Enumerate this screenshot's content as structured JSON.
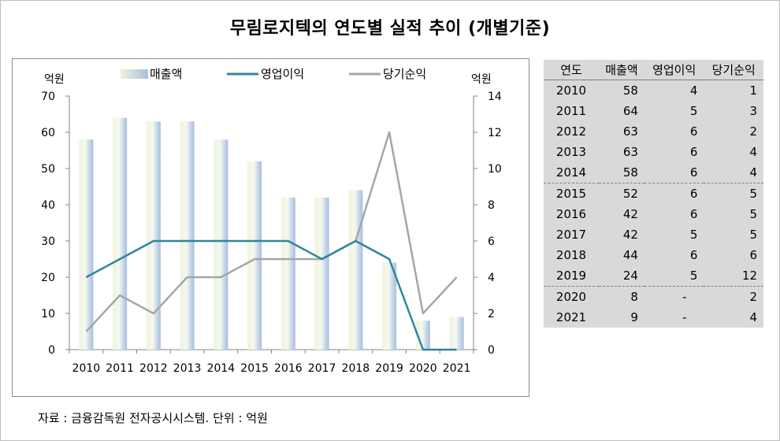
{
  "title": "무림로지텍의 연도별 실적 추이 (개별기준)",
  "source": "자료 : 금융감독원 전자공시시스템. 단위 : 억원",
  "chart_data": {
    "type": "bar",
    "categories": [
      "2010",
      "2011",
      "2012",
      "2013",
      "2014",
      "2015",
      "2016",
      "2017",
      "2018",
      "2019",
      "2020",
      "2021"
    ],
    "series": [
      {
        "name": "매출액",
        "type": "bar",
        "axis": "left",
        "values": [
          58,
          64,
          63,
          63,
          58,
          52,
          42,
          42,
          44,
          24,
          8,
          9
        ]
      },
      {
        "name": "영업이익",
        "type": "line",
        "axis": "right",
        "values": [
          4,
          5,
          6,
          6,
          6,
          6,
          6,
          5,
          6,
          5,
          0,
          0
        ],
        "color": "#31859c"
      },
      {
        "name": "당기순익",
        "type": "line",
        "axis": "right",
        "values": [
          1,
          3,
          2,
          4,
          4,
          5,
          5,
          5,
          6,
          12,
          2,
          4
        ],
        "color": "#a6a6a6"
      }
    ],
    "y_left": {
      "label": "억원",
      "ylim": [
        0,
        70
      ],
      "ticks": [
        "0",
        "10",
        "20",
        "30",
        "40",
        "50",
        "60",
        "70"
      ]
    },
    "y_right": {
      "label": "억원",
      "ylim": [
        0,
        14
      ],
      "ticks": [
        "0",
        "2",
        "4",
        "6",
        "8",
        "10",
        "12",
        "14"
      ]
    },
    "grid": false,
    "legend": "top",
    "colors": {
      "bar_light": "#eef4dc",
      "bar_mid": "#c6d6ea",
      "bar_edge": "#a9bfdc"
    }
  },
  "table": {
    "headers": [
      "연도",
      "매출액",
      "영업이익",
      "당기순익"
    ],
    "rows": [
      [
        "2010",
        "58",
        "4",
        "1"
      ],
      [
        "2011",
        "64",
        "5",
        "3"
      ],
      [
        "2012",
        "63",
        "6",
        "2"
      ],
      [
        "2013",
        "63",
        "6",
        "4"
      ],
      [
        "2014",
        "58",
        "6",
        "4"
      ],
      [
        "2015",
        "52",
        "6",
        "5"
      ],
      [
        "2016",
        "42",
        "6",
        "5"
      ],
      [
        "2017",
        "42",
        "5",
        "5"
      ],
      [
        "2018",
        "44",
        "6",
        "6"
      ],
      [
        "2019",
        "24",
        "5",
        "12"
      ],
      [
        "2020",
        "8",
        "-",
        "2"
      ],
      [
        "2021",
        "9",
        "-",
        "4"
      ]
    ]
  }
}
